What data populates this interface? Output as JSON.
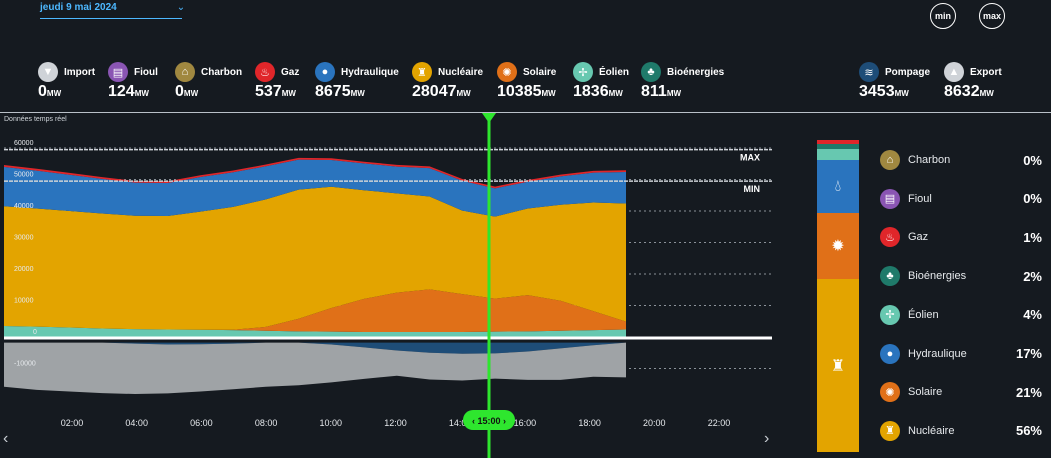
{
  "header": {
    "date_label": "jeudi 9 mai 2024",
    "min_label": "min",
    "max_label": "max"
  },
  "sources": [
    {
      "label": "Import",
      "value": "0",
      "unit": "MW",
      "icon": "chevron-down-icon",
      "glyph": "▼",
      "color": "#cfd3d8"
    },
    {
      "label": "Fioul",
      "value": "124",
      "unit": "MW",
      "icon": "oil-barrel-icon",
      "glyph": "▤",
      "color": "#8a55b3"
    },
    {
      "label": "Charbon",
      "value": "0",
      "unit": "MW",
      "icon": "coal-icon",
      "glyph": "⌂",
      "color": "#a08840"
    },
    {
      "label": "Gaz",
      "value": "537",
      "unit": "MW",
      "icon": "flame-icon",
      "glyph": "♨",
      "color": "#e0262a"
    },
    {
      "label": "Hydraulique",
      "value": "8675",
      "unit": "MW",
      "icon": "water-drop-icon",
      "glyph": "●",
      "color": "#2a74be"
    },
    {
      "label": "Nucléaire",
      "value": "28047",
      "unit": "MW",
      "icon": "nuclear-plant-icon",
      "glyph": "♜",
      "color": "#e3a400"
    },
    {
      "label": "Solaire",
      "value": "10385",
      "unit": "MW",
      "icon": "sun-icon",
      "glyph": "✺",
      "color": "#e07018"
    },
    {
      "label": "Éolien",
      "value": "1836",
      "unit": "MW",
      "icon": "wind-turbine-icon",
      "glyph": "✢",
      "color": "#67c8b0"
    },
    {
      "label": "Bioénergies",
      "value": "811",
      "unit": "MW",
      "icon": "leaf-icon",
      "glyph": "♣",
      "color": "#1f7a6a"
    },
    {
      "label": "Pompage",
      "value": "3453",
      "unit": "MW",
      "icon": "pumping-icon",
      "glyph": "≋",
      "color": "#1e4d78"
    },
    {
      "label": "Export",
      "value": "8632",
      "unit": "MW",
      "icon": "chevron-up-icon",
      "glyph": "▲",
      "color": "#cfd3d8"
    }
  ],
  "chart_label": "Données temps réel",
  "cursor_time": "15:00",
  "legend": [
    {
      "label": "Charbon",
      "pct": "0%",
      "icon": "coal-icon",
      "glyph": "⌂",
      "color": "#a08840"
    },
    {
      "label": "Fioul",
      "pct": "0%",
      "icon": "oil-barrel-icon",
      "glyph": "▤",
      "color": "#8a55b3"
    },
    {
      "label": "Gaz",
      "pct": "1%",
      "icon": "flame-icon",
      "glyph": "♨",
      "color": "#e0262a"
    },
    {
      "label": "Bioénergies",
      "pct": "2%",
      "icon": "leaf-icon",
      "glyph": "♣",
      "color": "#1f7a6a"
    },
    {
      "label": "Éolien",
      "pct": "4%",
      "icon": "wind-turbine-icon",
      "glyph": "✢",
      "color": "#67c8b0"
    },
    {
      "label": "Hydraulique",
      "pct": "17%",
      "icon": "water-drop-icon",
      "glyph": "●",
      "color": "#2a74be"
    },
    {
      "label": "Solaire",
      "pct": "21%",
      "icon": "sun-icon",
      "glyph": "✺",
      "color": "#e07018"
    },
    {
      "label": "Nucléaire",
      "pct": "56%",
      "icon": "nuclear-plant-icon",
      "glyph": "♜",
      "color": "#e3a400"
    }
  ],
  "chart_data": {
    "type": "area",
    "x_ticks": [
      "02:00",
      "04:00",
      "06:00",
      "08:00",
      "10:00",
      "12:00",
      "14:00",
      "16:00",
      "18:00",
      "20:00",
      "22:00"
    ],
    "y_ticks": [
      60000,
      50000,
      40000,
      30000,
      20000,
      10000,
      0,
      -10000
    ],
    "ylim": [
      -20000,
      62000
    ],
    "ref_lines": [
      {
        "label": "MAX",
        "value": 59500
      },
      {
        "label": "MIN",
        "value": 49500
      }
    ],
    "x": [
      0,
      1,
      2,
      3,
      4,
      5,
      6,
      7,
      8,
      9,
      10,
      11,
      12,
      13,
      14,
      15,
      16,
      17,
      18,
      19
    ],
    "series": [
      {
        "name": "Éolien",
        "color": "#67c8b0",
        "values": [
          3500,
          3300,
          3000,
          2700,
          2500,
          2400,
          2300,
          2200,
          2000,
          1800,
          1700,
          1600,
          1600,
          1600,
          1600,
          1700,
          1800,
          2000,
          2200,
          2400
        ]
      },
      {
        "name": "Solaire",
        "color": "#e07018",
        "values": [
          0,
          0,
          0,
          0,
          0,
          0,
          0,
          100,
          1200,
          4000,
          7500,
          10500,
          12500,
          13500,
          12000,
          10500,
          11500,
          9500,
          6000,
          2500
        ]
      },
      {
        "name": "Nucléaire",
        "color": "#e3a400",
        "values": [
          38000,
          37500,
          37000,
          36500,
          36000,
          36000,
          37500,
          39000,
          40500,
          41000,
          38500,
          34500,
          31500,
          29500,
          26500,
          26000,
          27500,
          30500,
          34500,
          37500
        ]
      },
      {
        "name": "Hydraulique",
        "color": "#2a74be",
        "values": [
          12500,
          12000,
          11500,
          11000,
          10500,
          10500,
          11000,
          11000,
          10500,
          9500,
          8500,
          8500,
          8500,
          9000,
          9500,
          9000,
          8500,
          9000,
          9500,
          10000
        ]
      },
      {
        "name": "Gaz",
        "color": "#e0262a",
        "values": [
          600,
          600,
          600,
          550,
          550,
          550,
          550,
          550,
          550,
          550,
          550,
          550,
          550,
          550,
          550,
          550,
          550,
          550,
          550,
          550
        ]
      },
      {
        "name": "Export",
        "color": "#9fa3a6",
        "values": [
          -14000,
          -15000,
          -15500,
          -16000,
          -16000,
          -15500,
          -15000,
          -14500,
          -14000,
          -13500,
          -12000,
          -10000,
          -8000,
          -8500,
          -8500,
          -8000,
          -9000,
          -10000,
          -10000,
          -11000
        ]
      },
      {
        "name": "Pompage",
        "color": "#1e4d78",
        "values": [
          0,
          0,
          0,
          0,
          -300,
          -600,
          -500,
          -300,
          0,
          0,
          -600,
          -1500,
          -2500,
          -3200,
          -3500,
          -3400,
          -2800,
          -1800,
          -800,
          0
        ]
      }
    ]
  }
}
